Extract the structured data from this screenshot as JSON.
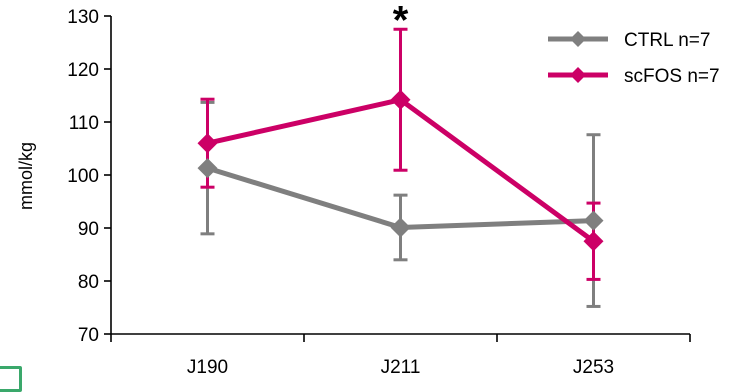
{
  "chart_data": {
    "type": "line",
    "categories": [
      "J190",
      "J211",
      "J253"
    ],
    "ylabel": "mmol/kg",
    "ylim": [
      70,
      130
    ],
    "yticks": [
      70,
      80,
      90,
      100,
      110,
      120,
      130
    ],
    "grid": false,
    "legend_position": "top-right",
    "series": [
      {
        "name": "CTRL n=7",
        "color": "#7f7f7f",
        "marker": "diamond",
        "values": [
          101.3,
          90.1,
          91.4
        ],
        "error": [
          12.4,
          6.1,
          16.2
        ]
      },
      {
        "name": "scFOS n=7",
        "color": "#cc0066",
        "marker": "diamond",
        "values": [
          106.0,
          114.2,
          87.5
        ],
        "error": [
          8.3,
          13.3,
          7.2
        ]
      }
    ],
    "annotations": [
      {
        "text": "*",
        "category": "J211",
        "y": 130.5
      }
    ]
  }
}
